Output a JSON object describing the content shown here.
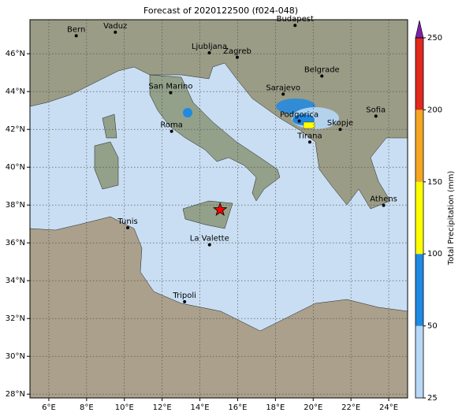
{
  "chart_data": {
    "type": "map",
    "title": "Forecast of 2020122500 (f024-048)",
    "xlim": [
      5,
      25
    ],
    "ylim": [
      27.8,
      47.8
    ],
    "xticks": [
      {
        "value": 6,
        "label": "6°E"
      },
      {
        "value": 8,
        "label": "8°E"
      },
      {
        "value": 10,
        "label": "10°E"
      },
      {
        "value": 12,
        "label": "12°E"
      },
      {
        "value": 14,
        "label": "14°E"
      },
      {
        "value": 16,
        "label": "16°E"
      },
      {
        "value": 18,
        "label": "18°E"
      },
      {
        "value": 20,
        "label": "20°E"
      },
      {
        "value": 22,
        "label": "22°E"
      },
      {
        "value": 24,
        "label": "24°E"
      }
    ],
    "yticks": [
      {
        "value": 28,
        "label": "28°N"
      },
      {
        "value": 30,
        "label": "30°N"
      },
      {
        "value": 32,
        "label": "32°N"
      },
      {
        "value": 34,
        "label": "34°N"
      },
      {
        "value": 36,
        "label": "36°N"
      },
      {
        "value": 38,
        "label": "38°N"
      },
      {
        "value": 40,
        "label": "40°N"
      },
      {
        "value": 42,
        "label": "42°N"
      },
      {
        "value": 44,
        "label": "44°N"
      },
      {
        "value": 46,
        "label": "46°N"
      }
    ],
    "grid": true,
    "cities": [
      {
        "name": "Bern",
        "lon": 7.45,
        "lat": 46.95
      },
      {
        "name": "Vaduz",
        "lon": 9.52,
        "lat": 47.14
      },
      {
        "name": "Budapest",
        "lon": 19.04,
        "lat": 47.5
      },
      {
        "name": "Ljubljana",
        "lon": 14.5,
        "lat": 46.05
      },
      {
        "name": "Zagreb",
        "lon": 15.98,
        "lat": 45.81
      },
      {
        "name": "Belgrade",
        "lon": 20.46,
        "lat": 44.82
      },
      {
        "name": "San Marino",
        "lon": 12.45,
        "lat": 43.94
      },
      {
        "name": "Sarajevo",
        "lon": 18.41,
        "lat": 43.86
      },
      {
        "name": "Sofia",
        "lon": 23.32,
        "lat": 42.7
      },
      {
        "name": "Podgorica",
        "lon": 19.26,
        "lat": 42.44
      },
      {
        "name": "Skopje",
        "lon": 21.43,
        "lat": 42.0
      },
      {
        "name": "Roma",
        "lon": 12.5,
        "lat": 41.9
      },
      {
        "name": "Tirana",
        "lon": 19.82,
        "lat": 41.33
      },
      {
        "name": "Athens",
        "lon": 23.73,
        "lat": 37.98
      },
      {
        "name": "Tunis",
        "lon": 10.18,
        "lat": 36.8
      },
      {
        "name": "La Valette",
        "lon": 14.51,
        "lat": 35.9
      },
      {
        "name": "Tripoli",
        "lon": 13.19,
        "lat": 32.89
      }
    ],
    "star": {
      "lon": 15.07,
      "lat": 37.75,
      "color": "#ff0000"
    },
    "colorbar": {
      "label": "Total Precipitation (mm)",
      "ticks": [
        25,
        50,
        100,
        150,
        200,
        250
      ],
      "colors": [
        "#b7d8f7",
        "#1f8ae3",
        "#ffff00",
        "#f5a623",
        "#e3281e"
      ],
      "extend_color": "#7b22a8"
    }
  }
}
